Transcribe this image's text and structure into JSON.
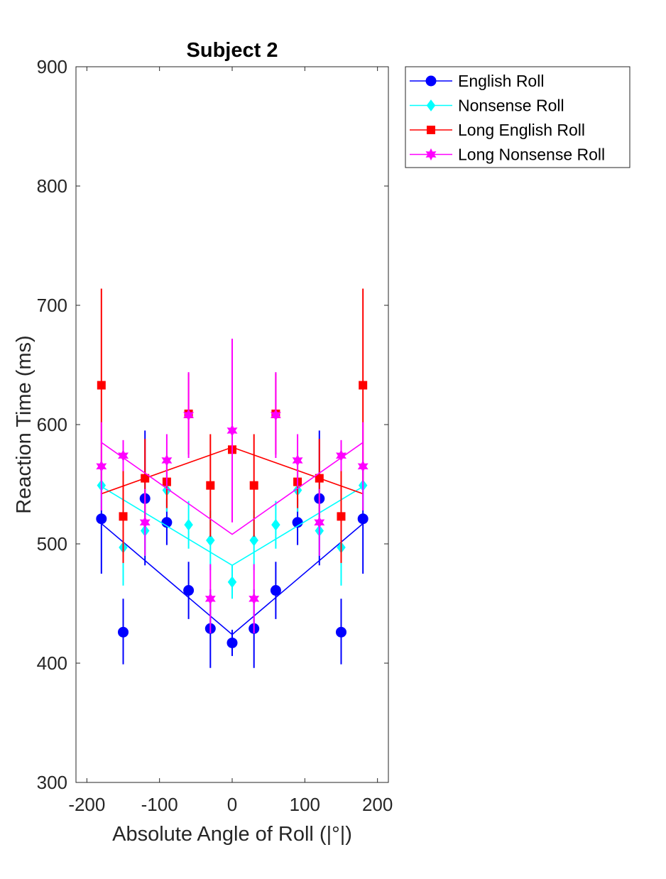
{
  "chart_data": {
    "type": "line",
    "title": "Subject 2",
    "xlabel": "Absolute Angle of Roll (|°|)",
    "ylabel": "Reaction Time (ms)",
    "xlim": [
      -215,
      215
    ],
    "ylim": [
      300,
      900
    ],
    "xticks": [
      -200,
      -100,
      0,
      100,
      200
    ],
    "xtick_labels": [
      "-200",
      "-100",
      "0",
      "100",
      "200"
    ],
    "yticks": [
      300,
      400,
      500,
      600,
      700,
      800,
      900
    ],
    "ytick_labels": [
      "300",
      "400",
      "500",
      "600",
      "700",
      "800",
      "900"
    ],
    "grid": false,
    "legend_position": "outside top-right",
    "x": [
      -180,
      -150,
      -120,
      -90,
      -60,
      -30,
      0,
      30,
      60,
      90,
      120,
      150,
      180
    ],
    "series": [
      {
        "name": "English Roll",
        "color": "#0000ff",
        "marker": "circle",
        "values": [
          521,
          426,
          538,
          518,
          461,
          429,
          417,
          429,
          461,
          518,
          538,
          426,
          521
        ],
        "err_low": [
          475,
          399,
          482,
          499,
          437,
          396,
          406,
          396,
          437,
          499,
          482,
          399,
          475
        ],
        "err_high": [
          567,
          454,
          595,
          538,
          485,
          462,
          428,
          462,
          485,
          538,
          595,
          454,
          567
        ],
        "fit": [
          [
            -180,
            517
          ],
          [
            0,
            424
          ],
          [
            180,
            517
          ]
        ]
      },
      {
        "name": "Nonsense Roll",
        "color": "#00ffff",
        "marker": "diamond",
        "values": [
          549,
          497,
          511,
          545,
          516,
          503,
          468,
          503,
          516,
          545,
          511,
          497,
          549
        ],
        "err_low": [
          530,
          465,
          490,
          527,
          496,
          478,
          454,
          478,
          496,
          527,
          490,
          465,
          530
        ],
        "err_high": [
          568,
          529,
          532,
          563,
          536,
          528,
          482,
          528,
          536,
          563,
          532,
          529,
          568
        ],
        "fit": [
          [
            -180,
            548
          ],
          [
            0,
            482
          ],
          [
            180,
            548
          ]
        ]
      },
      {
        "name": "Long English Roll",
        "color": "#ff0000",
        "marker": "square",
        "values": [
          633,
          523,
          555,
          552,
          609,
          549,
          579,
          549,
          609,
          552,
          555,
          523,
          633
        ],
        "err_low": [
          552,
          484,
          522,
          530,
          575,
          506,
          530,
          506,
          575,
          530,
          522,
          484,
          552
        ],
        "err_high": [
          714,
          562,
          588,
          574,
          643,
          592,
          628,
          592,
          643,
          574,
          588,
          562,
          714
        ],
        "fit": [
          [
            -180,
            542
          ],
          [
            0,
            581
          ],
          [
            180,
            542
          ]
        ]
      },
      {
        "name": "Long Nonsense Roll",
        "color": "#ff00ff",
        "marker": "hexagram",
        "values": [
          565,
          574,
          518,
          570,
          608,
          454,
          595,
          454,
          608,
          570,
          518,
          574,
          565
        ],
        "err_low": [
          528,
          561,
          490,
          548,
          572,
          425,
          518,
          425,
          572,
          548,
          490,
          561,
          528
        ],
        "err_high": [
          602,
          587,
          546,
          592,
          644,
          483,
          672,
          483,
          644,
          592,
          546,
          587,
          602
        ],
        "fit": [
          [
            -180,
            585
          ],
          [
            0,
            508
          ],
          [
            180,
            585
          ]
        ]
      }
    ]
  }
}
